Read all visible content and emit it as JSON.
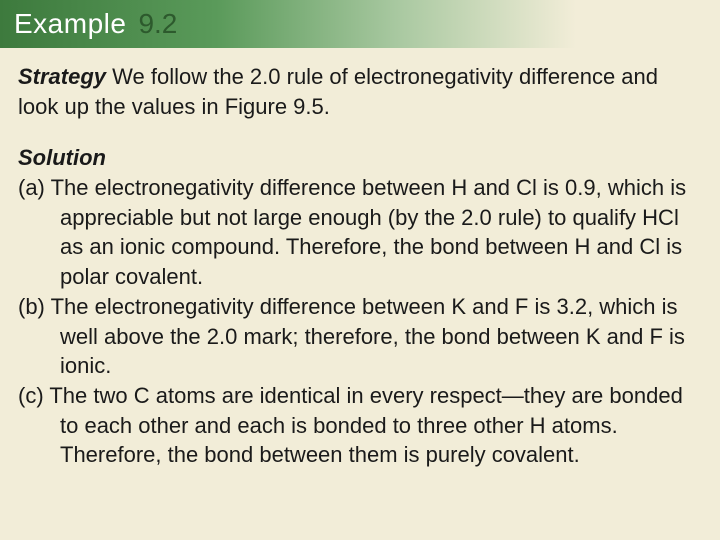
{
  "header": {
    "label": "Example",
    "number": "9.2"
  },
  "strategy": {
    "label": "Strategy",
    "text": "  We follow the 2.0 rule of electronegativity difference and look up the values in Figure 9.5."
  },
  "solution": {
    "label": "Solution",
    "items": [
      "(a) The electronegativity difference between H and Cl is 0.9, which is appreciable but not large enough (by the 2.0 rule) to qualify HCl as an ionic compound.  Therefore, the bond between H and Cl is polar covalent.",
      "(b) The electronegativity difference between K and F is 3.2, which is well above the 2.0 mark; therefore, the bond between K and F is ionic.",
      "(c) The two C atoms are identical in every respect—they are bonded to each other and each is bonded to three other H atoms.  Therefore, the bond between them is purely covalent."
    ]
  },
  "colors": {
    "background": "#f2edd8",
    "header_gradient_start": "#3d7a3d",
    "header_gradient_end": "#f2edd8",
    "header_label_color": "#ffffff",
    "header_number_color": "#2d5a2d",
    "text_color": "#1a1a1a"
  },
  "typography": {
    "header_fontsize": 28,
    "body_fontsize": 22,
    "line_height": 1.35,
    "font_family": "Arial"
  }
}
